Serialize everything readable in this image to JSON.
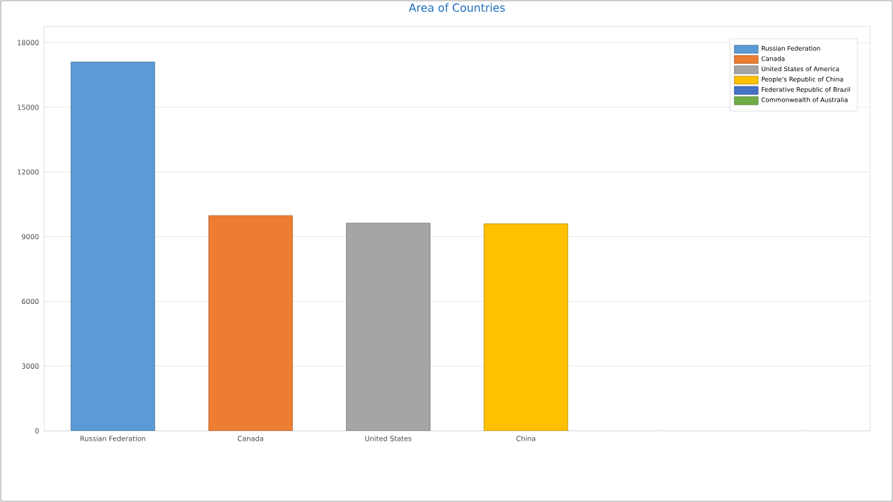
{
  "chart_data": {
    "type": "bar",
    "title": "Area of Countries",
    "categories": [
      "Russian Federation",
      "Canada",
      "United States",
      "China",
      null,
      null
    ],
    "series": [
      {
        "name": "Russian Federation",
        "color": "#5b9bd5",
        "values": [
          17100,
          null,
          null,
          null,
          null,
          null
        ]
      },
      {
        "name": "Canada",
        "color": "#ed7d31",
        "values": [
          null,
          9980,
          null,
          null,
          null,
          null
        ]
      },
      {
        "name": "United States of America",
        "color": "#a5a5a5",
        "values": [
          null,
          null,
          9630,
          null,
          null,
          null
        ]
      },
      {
        "name": "People's Republic of China",
        "color": "#ffc000",
        "values": [
          null,
          null,
          null,
          9600,
          null,
          null
        ]
      },
      {
        "name": "Federative Republic of Brazil",
        "color": "#4472c4",
        "values": [
          null,
          null,
          null,
          null,
          null,
          null
        ]
      },
      {
        "name": "Commonwealth of Australia",
        "color": "#70ad47",
        "values": [
          null,
          null,
          null,
          null,
          null,
          null
        ]
      }
    ],
    "ylim": [
      0,
      18750
    ],
    "yticks": [
      0,
      3000,
      6000,
      9000,
      12000,
      15000,
      18000
    ],
    "grid": "y",
    "legend": "top right"
  }
}
